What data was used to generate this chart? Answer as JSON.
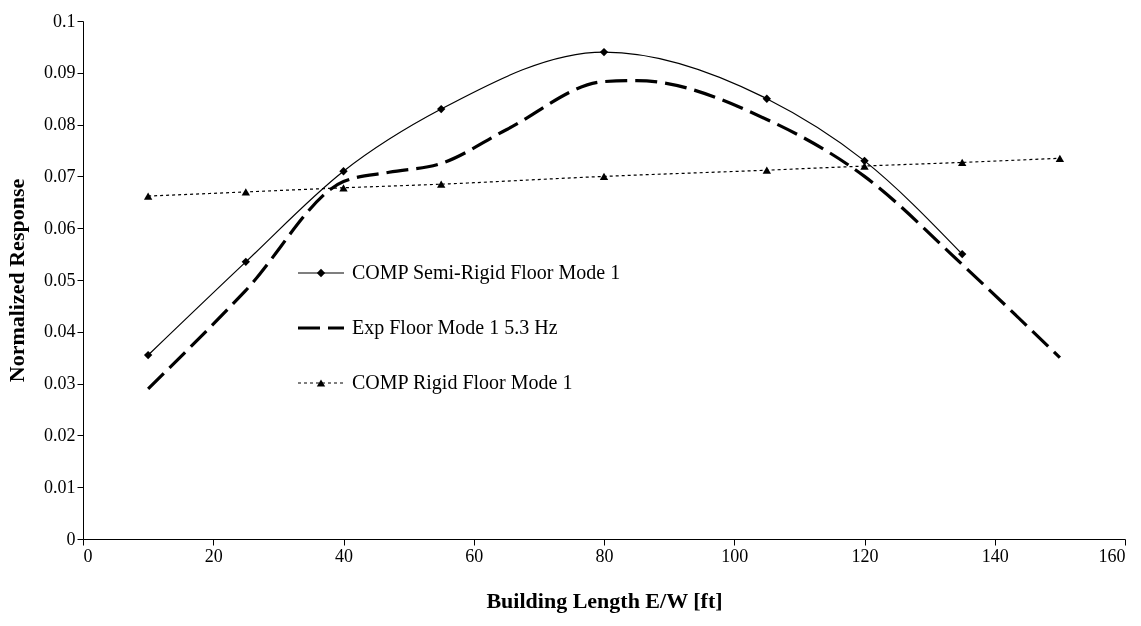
{
  "chart_data": {
    "type": "line",
    "xlabel": "Building Length E/W [ft]",
    "ylabel": "Normalized Response",
    "xlim": [
      0,
      160
    ],
    "xticks": [
      0,
      20,
      40,
      60,
      80,
      100,
      120,
      140,
      160
    ],
    "ylim": [
      0,
      0.1
    ],
    "yticks": [
      0,
      0.01,
      0.02,
      0.03,
      0.04,
      0.05,
      0.06,
      0.07,
      0.08,
      0.09,
      0.1
    ],
    "grid": false,
    "legend": "left",
    "series": [
      {
        "name": "COMP Semi-Rigid Floor Mode 1",
        "color": "#000000",
        "marker": "diamond",
        "line_style": "solid",
        "x": [
          10,
          25,
          40,
          55,
          80,
          105,
          120,
          135
        ],
        "values": [
          0.0355,
          0.0535,
          0.071,
          0.083,
          0.094,
          0.085,
          0.073,
          0.055
        ]
      },
      {
        "name": "Exp Floor Mode 1 5.3 Hz",
        "color": "#000000",
        "marker": "none",
        "line_style": "dashed",
        "x": [
          10,
          25,
          40,
          47,
          55,
          65,
          80,
          85,
          105,
          120,
          135,
          150
        ],
        "values": [
          0.029,
          0.048,
          0.069,
          0.0708,
          0.0725,
          0.079,
          0.0883,
          0.0885,
          0.081,
          0.07,
          0.053,
          0.035
        ]
      },
      {
        "name": "COMP Rigid Floor Mode 1",
        "color": "#000000",
        "marker": "triangle",
        "line_style": "dotted",
        "x": [
          10,
          25,
          40,
          55,
          80,
          105,
          120,
          135,
          150
        ],
        "values": [
          0.0662,
          0.067,
          0.0678,
          0.0685,
          0.07,
          0.0712,
          0.072,
          0.0727,
          0.0735
        ]
      }
    ]
  }
}
